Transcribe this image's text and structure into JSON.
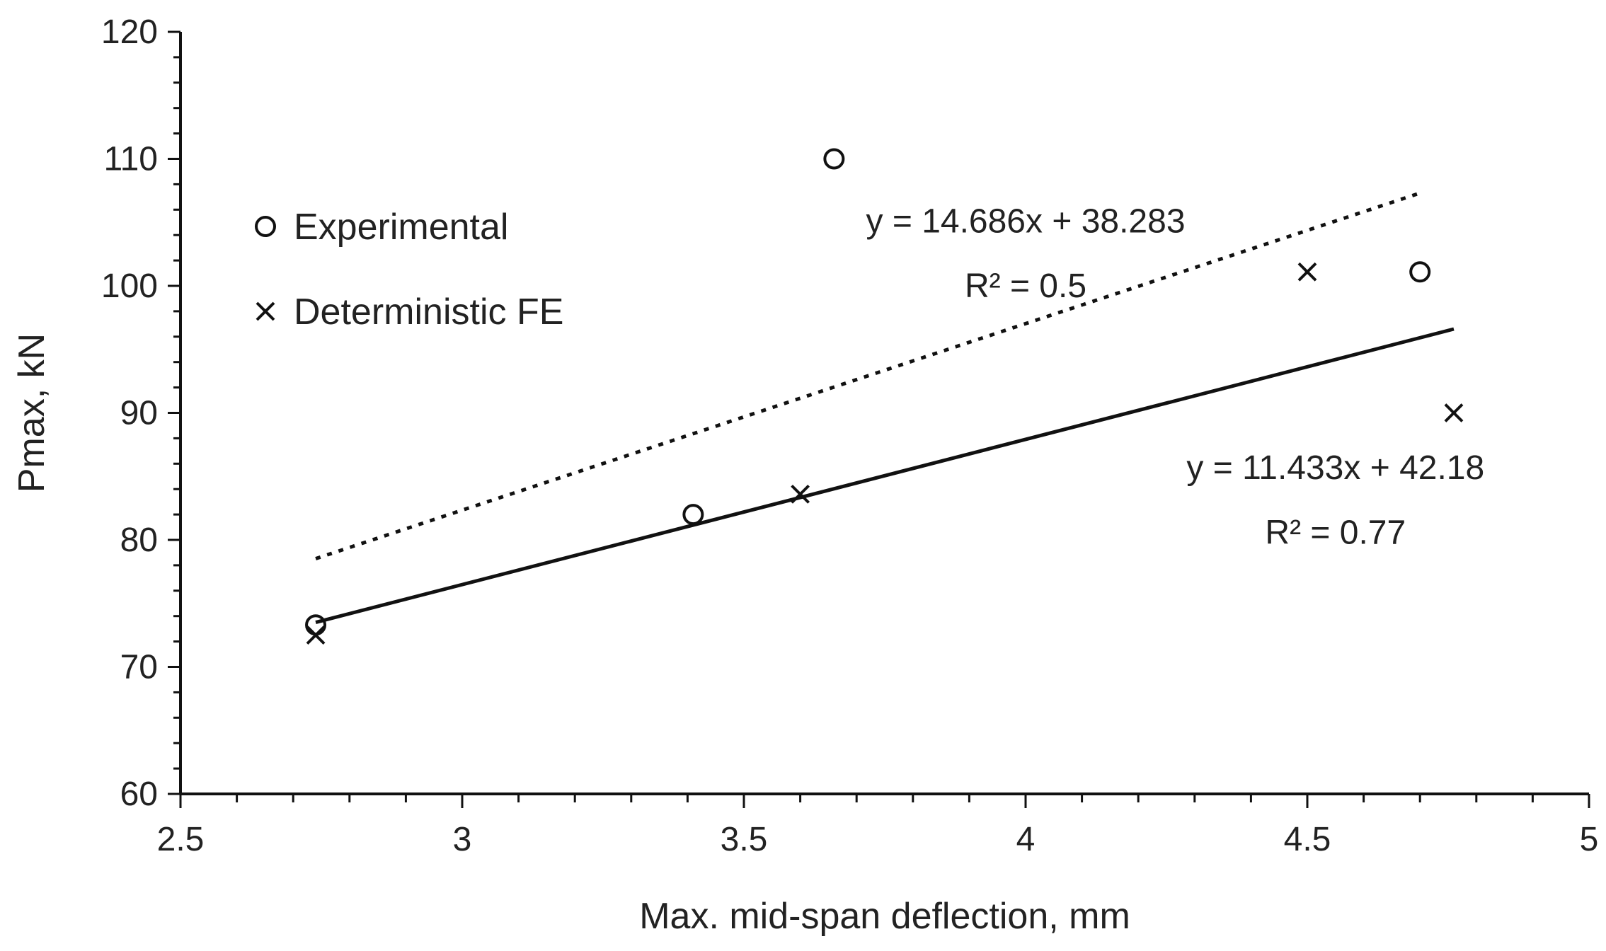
{
  "chart_data": {
    "type": "scatter",
    "xlabel": "Max. mid-span deflection, mm",
    "ylabel": "Pmax, kN",
    "xlim": [
      2.5,
      5
    ],
    "ylim": [
      60,
      120
    ],
    "x_ticks": [
      "2.5",
      "3",
      "3.5",
      "4",
      "4.5",
      "5"
    ],
    "y_ticks": [
      "60",
      "70",
      "80",
      "90",
      "100",
      "110",
      "120"
    ],
    "grid": false,
    "legend_position": "top-left",
    "series": [
      {
        "name": "Experimental",
        "marker": "circle",
        "points": [
          [
            2.74,
            73.3
          ],
          [
            3.41,
            82.0
          ],
          [
            3.66,
            110.0
          ],
          [
            4.7,
            101.1
          ]
        ]
      },
      {
        "name": "Deterministic FE",
        "marker": "cross",
        "points": [
          [
            2.74,
            72.5
          ],
          [
            3.6,
            83.6
          ],
          [
            4.5,
            101.1
          ],
          [
            4.76,
            90.0
          ]
        ]
      }
    ],
    "trendlines": [
      {
        "series": "Experimental",
        "style": "dotted",
        "slope": 14.686,
        "intercept": 38.283,
        "x_range": [
          2.74,
          4.7
        ]
      },
      {
        "series": "Deterministic FE",
        "style": "solid",
        "slope": 11.433,
        "intercept": 42.18,
        "x_range": [
          2.74,
          4.76
        ]
      }
    ],
    "annotations": [
      {
        "text": "y = 14.686x + 38.283",
        "x": 4.0,
        "y": 104.2
      },
      {
        "text": "R² = 0.5",
        "x": 4.0,
        "y": 99.1
      },
      {
        "text": "y = 11.433x + 42.18",
        "x": 4.55,
        "y": 84.8
      },
      {
        "text": "R² = 0.77",
        "x": 4.55,
        "y": 79.7
      }
    ],
    "colors": {
      "marks": "#111111",
      "axis": "#111111",
      "text": "#222222"
    }
  }
}
